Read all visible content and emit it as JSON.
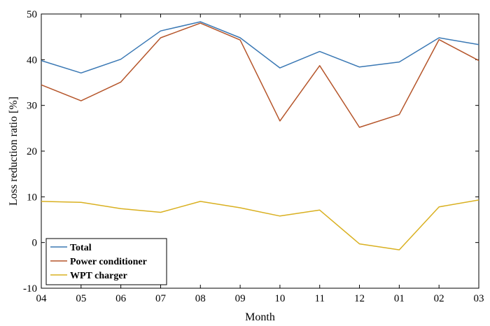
{
  "chart_data": {
    "type": "line",
    "xlabel": "Month",
    "ylabel": "Loss reduction ratio [%]",
    "categories": [
      "04",
      "05",
      "06",
      "07",
      "08",
      "09",
      "10",
      "11",
      "12",
      "01",
      "02",
      "03"
    ],
    "ylim": [
      -10,
      50
    ],
    "yticks": [
      -10,
      0,
      10,
      20,
      30,
      40,
      50
    ],
    "grid": false,
    "legend_position": "bottom-left",
    "series": [
      {
        "name": "Total",
        "color": "#3a78b4",
        "values": [
          39.8,
          37.1,
          40.1,
          46.3,
          48.3,
          44.8,
          38.2,
          41.8,
          38.4,
          39.5,
          44.8,
          43.3
        ]
      },
      {
        "name": "Power conditioner",
        "color": "#b5552a",
        "values": [
          34.5,
          31.0,
          35.1,
          44.8,
          48.0,
          44.3,
          26.6,
          38.7,
          25.2,
          28.0,
          44.4,
          39.8
        ]
      },
      {
        "name": "WPT charger",
        "color": "#d9b020",
        "values": [
          9.0,
          8.8,
          7.4,
          6.6,
          9.0,
          7.6,
          5.8,
          7.1,
          -0.3,
          -1.6,
          7.8,
          9.3
        ]
      }
    ]
  }
}
